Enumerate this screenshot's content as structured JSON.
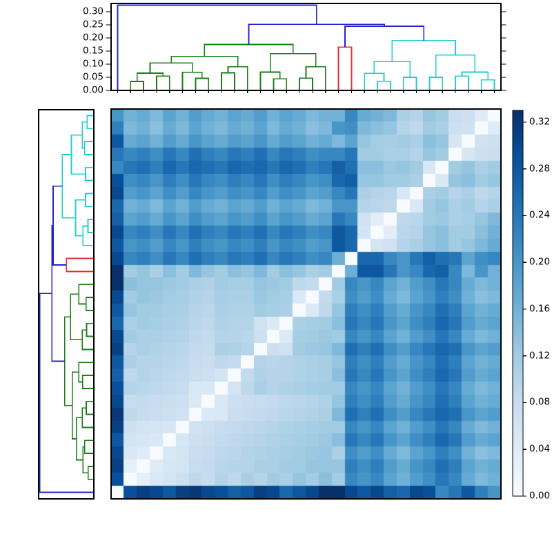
{
  "figure": {
    "background": "#ffffff",
    "kind": "hierarchical clustering heatmap"
  },
  "chart_data": {
    "type": "heatmap",
    "subtype": "distance-matrix-with-dendrograms",
    "n_leaves": 30,
    "vmin": 0.0,
    "vmax": 0.33,
    "colormap": {
      "name": "Blues",
      "stops": [
        [
          0.0,
          [
            247,
            251,
            255
          ]
        ],
        [
          0.125,
          [
            222,
            235,
            247
          ]
        ],
        [
          0.25,
          [
            198,
            219,
            239
          ]
        ],
        [
          0.375,
          [
            158,
            202,
            225
          ]
        ],
        [
          0.5,
          [
            107,
            174,
            214
          ]
        ],
        [
          0.625,
          [
            66,
            146,
            198
          ]
        ],
        [
          0.75,
          [
            33,
            113,
            181
          ]
        ],
        [
          0.875,
          [
            8,
            81,
            156
          ]
        ],
        [
          1.0,
          [
            8,
            48,
            107
          ]
        ]
      ]
    },
    "col_order_left_to_right": "leaves 0..29",
    "row_order_top_to_bottom": "leaves 29..0 (reversed, white zero diagonal runs bottom-left to top-right)",
    "clusters": [
      {
        "name": "singleton",
        "color_key": "blue",
        "leaves": "0"
      },
      {
        "name": "cluster-green",
        "color_key": "green",
        "leaves": "1-16"
      },
      {
        "name": "cluster-red",
        "color_key": "red",
        "leaves": "17-18"
      },
      {
        "name": "cluster-cyan",
        "color_key": "cyan",
        "leaves": "19-29"
      }
    ],
    "dist_upper_triangle": [
      [
        0.29,
        0.31,
        0.3,
        0.28,
        0.31,
        0.32,
        0.3,
        0.29,
        0.27,
        0.28,
        0.31,
        0.3,
        0.26,
        0.28,
        0.3,
        0.33,
        0.33,
        0.3,
        0.28,
        0.3,
        0.27,
        0.26,
        0.3,
        0.29,
        0.22,
        0.24,
        0.28,
        0.23,
        0.2
      ],
      [
        0.03,
        0.05,
        0.06,
        0.07,
        0.09,
        0.08,
        0.1,
        0.09,
        0.11,
        0.1,
        0.12,
        0.11,
        0.13,
        0.12,
        0.14,
        0.12,
        0.22,
        0.2,
        0.22,
        0.18,
        0.16,
        0.19,
        0.21,
        0.24,
        0.22,
        0.17,
        0.15,
        0.16
      ],
      [
        0.04,
        0.055,
        0.06,
        0.08,
        0.085,
        0.095,
        0.1,
        0.1,
        0.11,
        0.11,
        0.12,
        0.12,
        0.13,
        0.13,
        0.13,
        0.23,
        0.21,
        0.23,
        0.19,
        0.17,
        0.2,
        0.22,
        0.25,
        0.23,
        0.18,
        0.16,
        0.17
      ],
      [
        0.05,
        0.06,
        0.075,
        0.08,
        0.09,
        0.095,
        0.1,
        0.105,
        0.11,
        0.115,
        0.12,
        0.125,
        0.13,
        0.11,
        0.21,
        0.19,
        0.21,
        0.17,
        0.15,
        0.18,
        0.2,
        0.23,
        0.21,
        0.16,
        0.14,
        0.15
      ],
      [
        0.055,
        0.07,
        0.075,
        0.085,
        0.09,
        0.095,
        0.1,
        0.105,
        0.11,
        0.115,
        0.12,
        0.125,
        0.14,
        0.24,
        0.22,
        0.24,
        0.2,
        0.18,
        0.21,
        0.23,
        0.26,
        0.24,
        0.19,
        0.17,
        0.18
      ],
      [
        0.065,
        0.07,
        0.08,
        0.085,
        0.09,
        0.095,
        0.1,
        0.105,
        0.11,
        0.115,
        0.12,
        0.12,
        0.22,
        0.2,
        0.22,
        0.18,
        0.16,
        0.19,
        0.21,
        0.24,
        0.22,
        0.17,
        0.15,
        0.16
      ],
      [
        0.046,
        0.05,
        0.075,
        0.08,
        0.085,
        0.09,
        0.095,
        0.1,
        0.105,
        0.11,
        0.15,
        0.25,
        0.23,
        0.25,
        0.21,
        0.19,
        0.22,
        0.24,
        0.26,
        0.25,
        0.2,
        0.18,
        0.19
      ],
      [
        0.05,
        0.07,
        0.075,
        0.08,
        0.085,
        0.09,
        0.095,
        0.1,
        0.105,
        0.13,
        0.23,
        0.21,
        0.23,
        0.19,
        0.17,
        0.2,
        0.22,
        0.25,
        0.23,
        0.18,
        0.16,
        0.17
      ],
      [
        0.06,
        0.09,
        0.11,
        0.1,
        0.105,
        0.11,
        0.115,
        0.12,
        0.12,
        0.22,
        0.2,
        0.22,
        0.18,
        0.16,
        0.19,
        0.21,
        0.24,
        0.22,
        0.17,
        0.15,
        0.16
      ],
      [
        0.085,
        0.105,
        0.1,
        0.1,
        0.105,
        0.11,
        0.115,
        0.14,
        0.24,
        0.22,
        0.24,
        0.2,
        0.18,
        0.21,
        0.23,
        0.26,
        0.24,
        0.19,
        0.17,
        0.18
      ],
      [
        0.1,
        0.095,
        0.1,
        0.105,
        0.11,
        0.115,
        0.13,
        0.23,
        0.21,
        0.23,
        0.19,
        0.17,
        0.2,
        0.22,
        0.25,
        0.23,
        0.18,
        0.16,
        0.17
      ],
      [
        0.07,
        0.065,
        0.12,
        0.125,
        0.13,
        0.15,
        0.25,
        0.23,
        0.25,
        0.21,
        0.19,
        0.22,
        0.24,
        0.26,
        0.25,
        0.2,
        0.18,
        0.19
      ],
      [
        0.044,
        0.115,
        0.12,
        0.125,
        0.12,
        0.22,
        0.2,
        0.22,
        0.18,
        0.16,
        0.19,
        0.21,
        0.24,
        0.22,
        0.17,
        0.15,
        0.16
      ],
      [
        0.11,
        0.115,
        0.12,
        0.14,
        0.24,
        0.22,
        0.24,
        0.2,
        0.18,
        0.21,
        0.23,
        0.26,
        0.24,
        0.19,
        0.17,
        0.18
      ],
      [
        0.047,
        0.09,
        0.13,
        0.23,
        0.21,
        0.23,
        0.19,
        0.17,
        0.2,
        0.22,
        0.25,
        0.23,
        0.18,
        0.16,
        0.17
      ],
      [
        0.085,
        0.11,
        0.21,
        0.19,
        0.21,
        0.17,
        0.15,
        0.18,
        0.2,
        0.23,
        0.21,
        0.16,
        0.14,
        0.15
      ],
      [
        0.12,
        0.22,
        0.2,
        0.22,
        0.18,
        0.16,
        0.19,
        0.21,
        0.24,
        0.22,
        0.17,
        0.15,
        0.16
      ],
      [
        0.165,
        0.28,
        0.28,
        0.24,
        0.2,
        0.22,
        0.26,
        0.27,
        0.22,
        0.15,
        0.2,
        0.16
      ],
      [
        0.26,
        0.26,
        0.22,
        0.2,
        0.24,
        0.27,
        0.25,
        0.24,
        0.18,
        0.21,
        0.22
      ],
      [
        0.06,
        0.065,
        0.1,
        0.11,
        0.13,
        0.14,
        0.12,
        0.13,
        0.15,
        0.17
      ],
      [
        0.035,
        0.095,
        0.1,
        0.13,
        0.14,
        0.12,
        0.12,
        0.14,
        0.16
      ],
      [
        0.09,
        0.095,
        0.12,
        0.125,
        0.11,
        0.115,
        0.13,
        0.15
      ],
      [
        0.05,
        0.12,
        0.13,
        0.11,
        0.12,
        0.1,
        0.11
      ],
      [
        0.11,
        0.12,
        0.1,
        0.11,
        0.09,
        0.1
      ],
      [
        0.05,
        0.13,
        0.14,
        0.12,
        0.13
      ],
      [
        0.12,
        0.13,
        0.11,
        0.12
      ],
      [
        0.055,
        0.07,
        0.075
      ],
      [
        0.065,
        0.07
      ],
      [
        0.04
      ]
    ],
    "dendrogram": {
      "axis_tick_labels": [
        "0.00",
        "0.05",
        "0.10",
        "0.15",
        "0.20",
        "0.25",
        "0.30"
      ],
      "ylim": [
        0,
        0.332
      ],
      "link_colors": {
        "blue": "#2424cf",
        "green": "#197d19",
        "red": "#e82d2d",
        "cyan": "#23cdcd"
      },
      "merges": [
        [
          "L1",
          "L2",
          0.034,
          "green"
        ],
        [
          "L3",
          "L4",
          0.055,
          "green"
        ],
        [
          "M0",
          "M1",
          0.066,
          "green"
        ],
        [
          "L6",
          "L7",
          0.046,
          "green"
        ],
        [
          "L5",
          "M3",
          0.069,
          "green"
        ],
        [
          "M2",
          "M4",
          0.105,
          "green"
        ],
        [
          "L8",
          "L9",
          0.067,
          "green"
        ],
        [
          "L10",
          "M6",
          0.09,
          "green"
        ],
        [
          "M5",
          "M7",
          0.13,
          "green"
        ],
        [
          "L12",
          "L13",
          0.044,
          "green"
        ],
        [
          "L11",
          "M9",
          0.07,
          "green"
        ],
        [
          "L14",
          "L15",
          0.047,
          "green"
        ],
        [
          "L16",
          "M11",
          0.09,
          "green"
        ],
        [
          "M10",
          "M12",
          0.14,
          "green"
        ],
        [
          "M8",
          "M13",
          0.175,
          "green"
        ],
        [
          "L17",
          "L18",
          0.165,
          "red"
        ],
        [
          "L20",
          "L21",
          0.035,
          "cyan"
        ],
        [
          "L19",
          "M16",
          0.065,
          "cyan"
        ],
        [
          "L22",
          "L23",
          0.05,
          "cyan"
        ],
        [
          "M17",
          "M18",
          0.11,
          "cyan"
        ],
        [
          "L24",
          "L25",
          0.05,
          "cyan"
        ],
        [
          "L26",
          "L27",
          0.055,
          "cyan"
        ],
        [
          "L28",
          "L29",
          0.04,
          "cyan"
        ],
        [
          "M21",
          "M22",
          0.07,
          "cyan"
        ],
        [
          "M20",
          "M23",
          0.135,
          "cyan"
        ],
        [
          "M19",
          "M24",
          0.19,
          "cyan"
        ],
        [
          "M15",
          "M25",
          0.245,
          "blue"
        ],
        [
          "M14",
          "M26",
          0.252,
          "blue"
        ],
        [
          "L0",
          "M27",
          0.325,
          "blue"
        ]
      ]
    },
    "colorbar": {
      "tick_labels": [
        "0.00",
        "0.04",
        "0.08",
        "0.12",
        "0.16",
        "0.20",
        "0.24",
        "0.28",
        "0.32"
      ],
      "vmin": 0.0,
      "vmax": 0.33,
      "orientation": "vertical",
      "position": "right"
    }
  }
}
